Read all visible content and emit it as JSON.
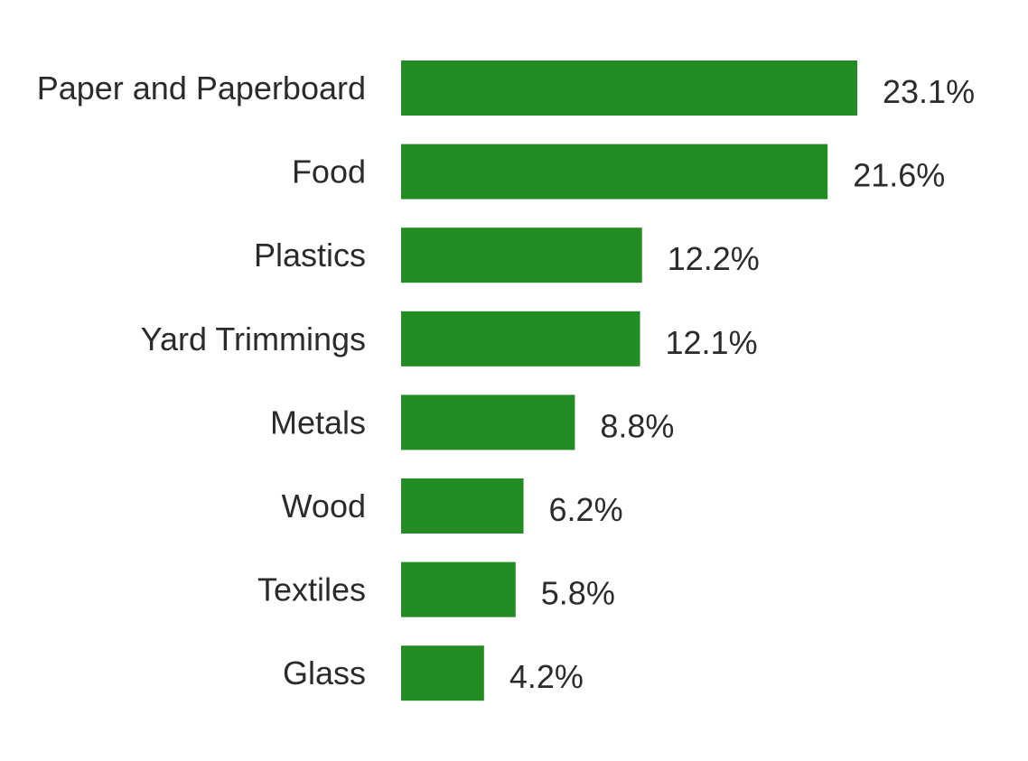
{
  "chart_data": {
    "type": "bar",
    "orientation": "horizontal",
    "categories": [
      "Paper and Paperboard",
      "Food",
      "Plastics",
      "Yard Trimmings",
      "Metals",
      "Wood",
      "Textiles",
      "Glass"
    ],
    "values": [
      23.1,
      21.6,
      12.2,
      12.1,
      8.8,
      6.2,
      5.8,
      4.2
    ],
    "value_labels": [
      "23.1%",
      "21.6%",
      "12.2%",
      "12.1%",
      "8.8%",
      "6.2%",
      "5.8%",
      "4.2%"
    ],
    "title": "",
    "xlabel": "",
    "ylabel": "",
    "grid": false,
    "legend": "none",
    "bar_color": "#228B22",
    "text_color": "#2b2b2b"
  }
}
